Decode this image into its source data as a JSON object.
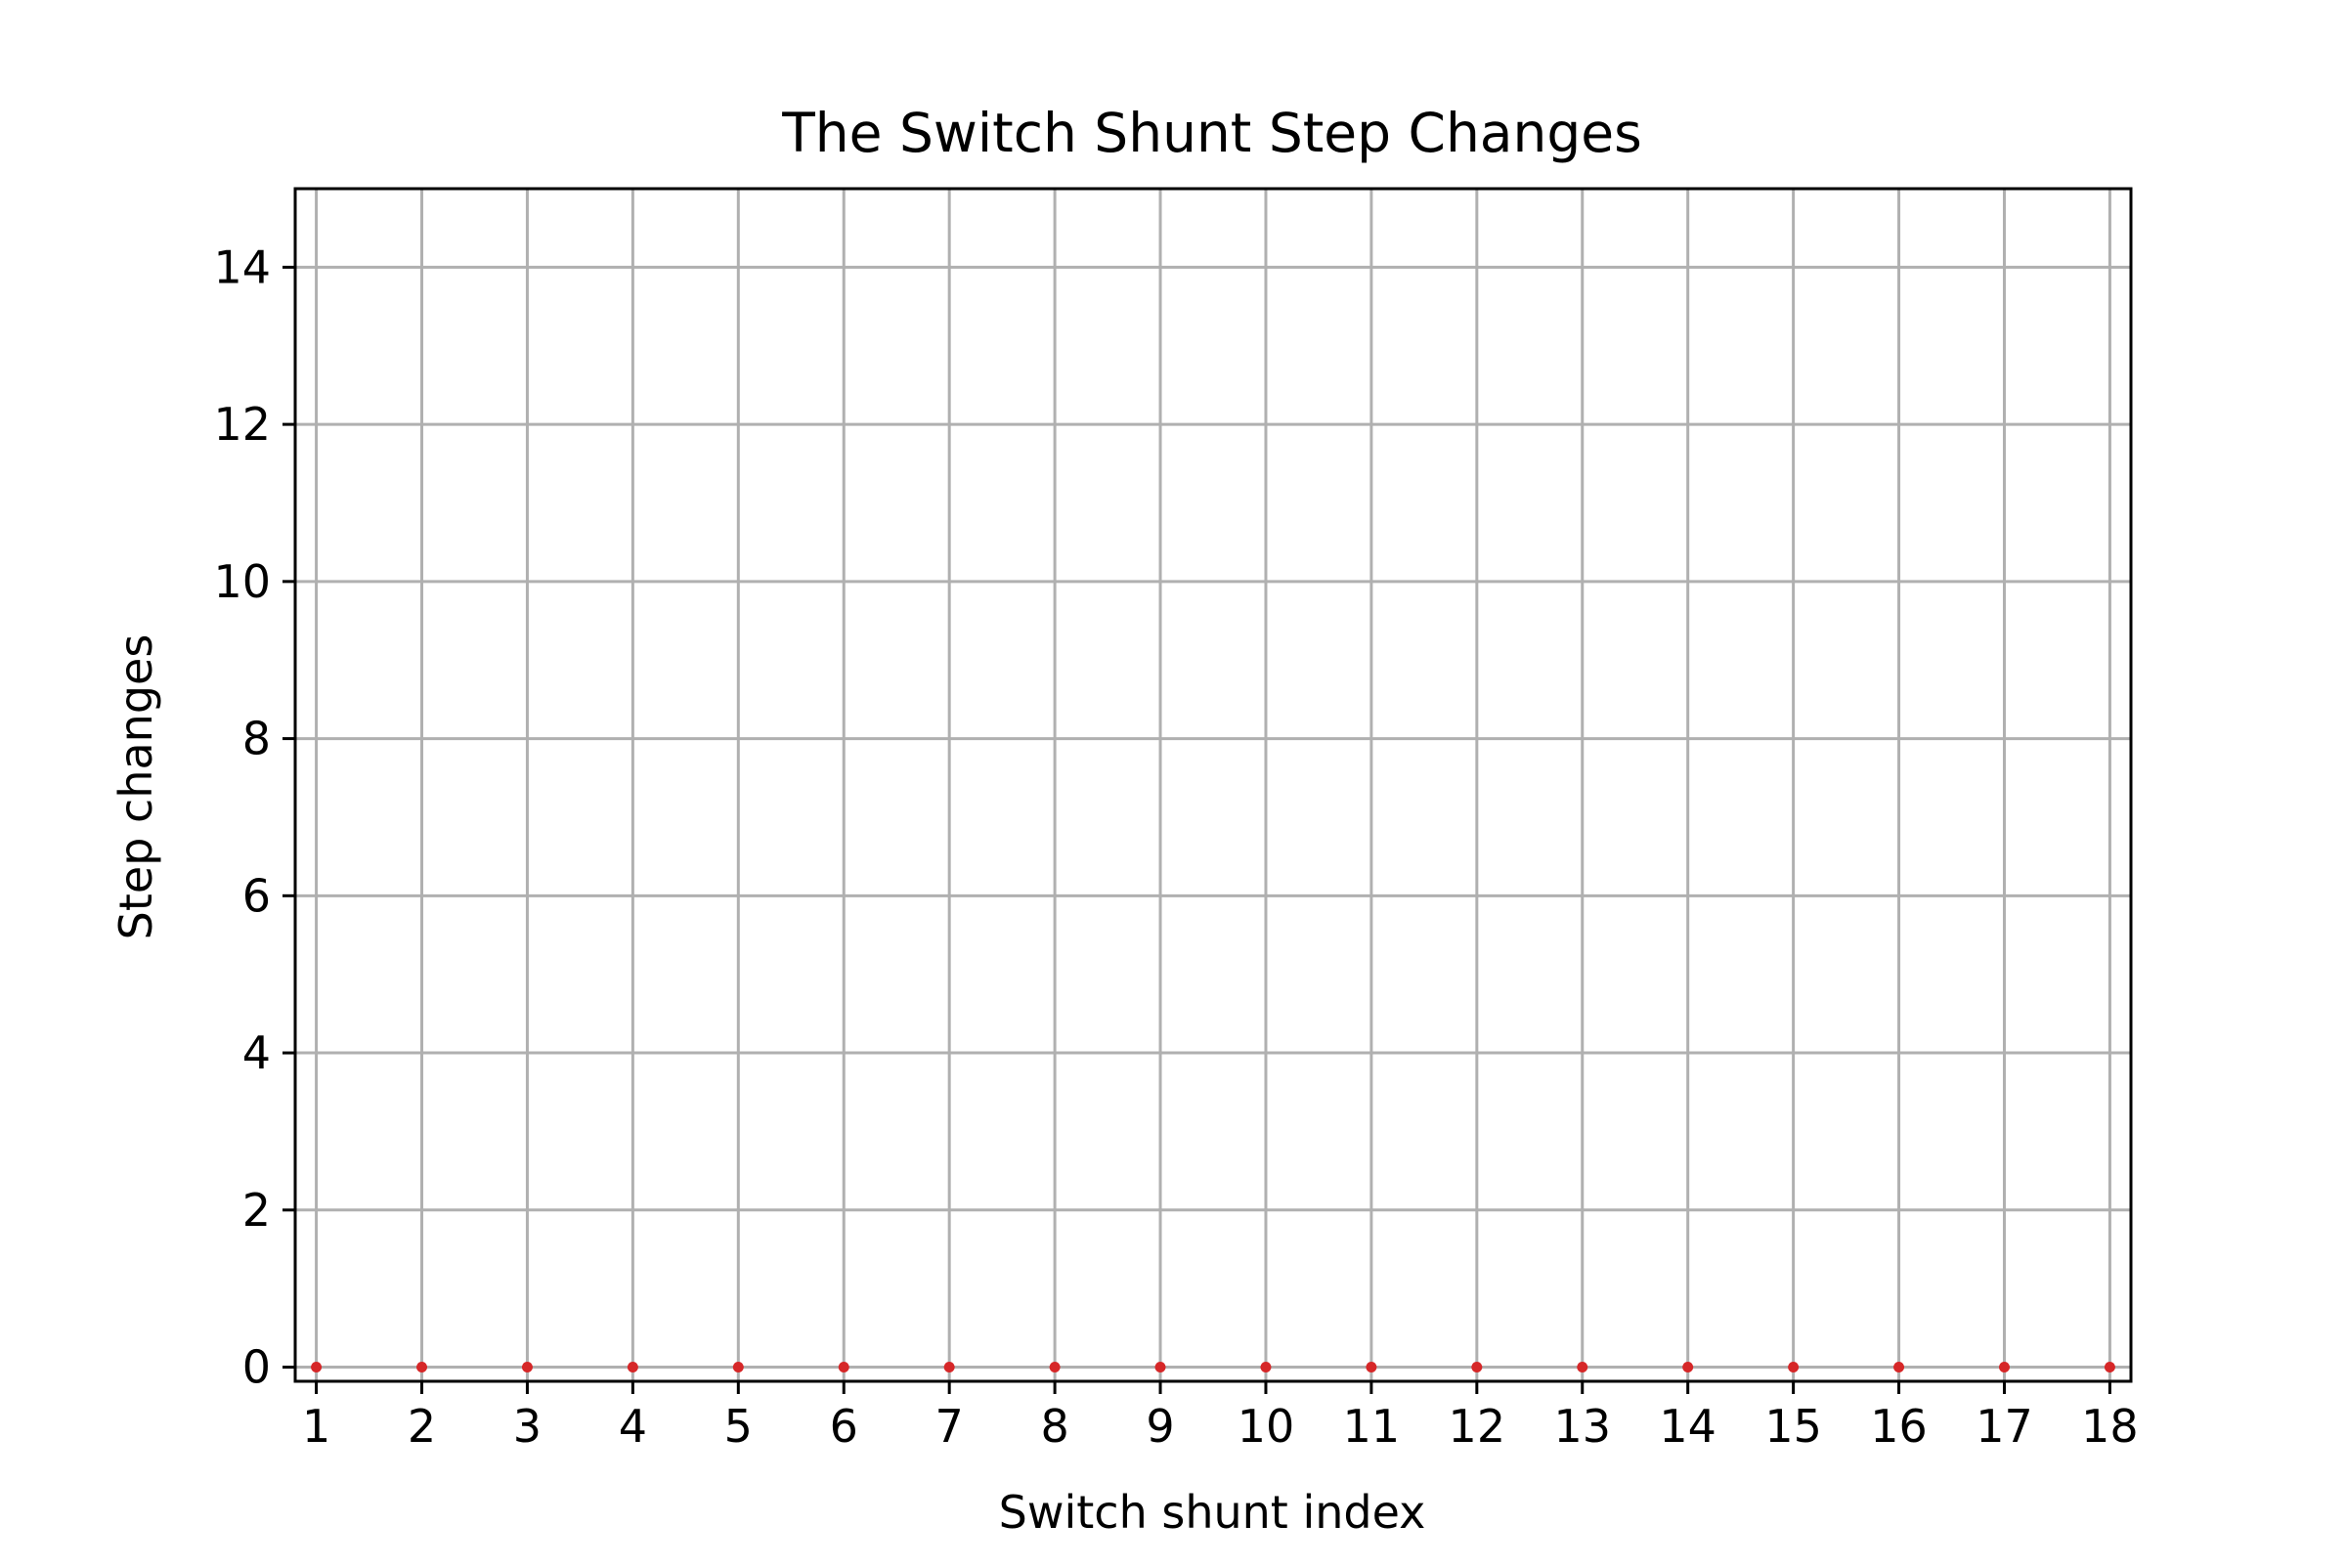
{
  "chart_data": {
    "type": "scatter",
    "title": "The Switch Shunt Step Changes",
    "xlabel": "Switch shunt index",
    "ylabel": "Step changes",
    "x": [
      1,
      2,
      3,
      4,
      5,
      6,
      7,
      8,
      9,
      10,
      11,
      12,
      13,
      14,
      15,
      16,
      17,
      18
    ],
    "y": [
      0,
      0,
      0,
      0,
      0,
      0,
      0,
      0,
      0,
      0,
      0,
      0,
      0,
      0,
      0,
      0,
      0,
      0
    ],
    "xlim": [
      0.8,
      18.2
    ],
    "ylim": [
      -0.18,
      15
    ],
    "xticks": [
      "1",
      "2",
      "3",
      "4",
      "5",
      "6",
      "7",
      "8",
      "9",
      "10",
      "11",
      "12",
      "13",
      "14",
      "15",
      "16",
      "17",
      "18"
    ],
    "yticks": [
      "0",
      "2",
      "4",
      "6",
      "8",
      "10",
      "12",
      "14"
    ],
    "grid": true,
    "legend": "none",
    "marker_color": "#d62728",
    "grid_color": "#b0b0b0"
  }
}
